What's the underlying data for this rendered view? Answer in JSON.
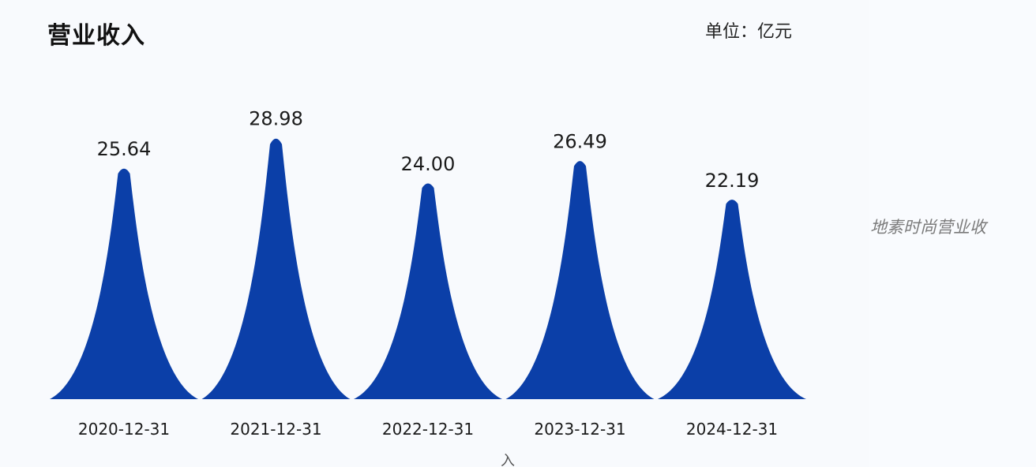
{
  "chart_data": {
    "type": "bar",
    "title": "营业收入",
    "unit": "单位：亿元",
    "categories": [
      "2020-12-31",
      "2021-12-31",
      "2022-12-31",
      "2023-12-31",
      "2024-12-31"
    ],
    "values": [
      25.64,
      28.98,
      24.0,
      26.49,
      22.19
    ],
    "value_labels": [
      "25.64",
      "28.98",
      "24.00",
      "26.49",
      "22.19"
    ],
    "bar_color": "#0b3fa8",
    "ylim": [
      0,
      30
    ],
    "grid": false,
    "legend": "none"
  },
  "caption": "地素时尚营业收",
  "footnote": "入"
}
